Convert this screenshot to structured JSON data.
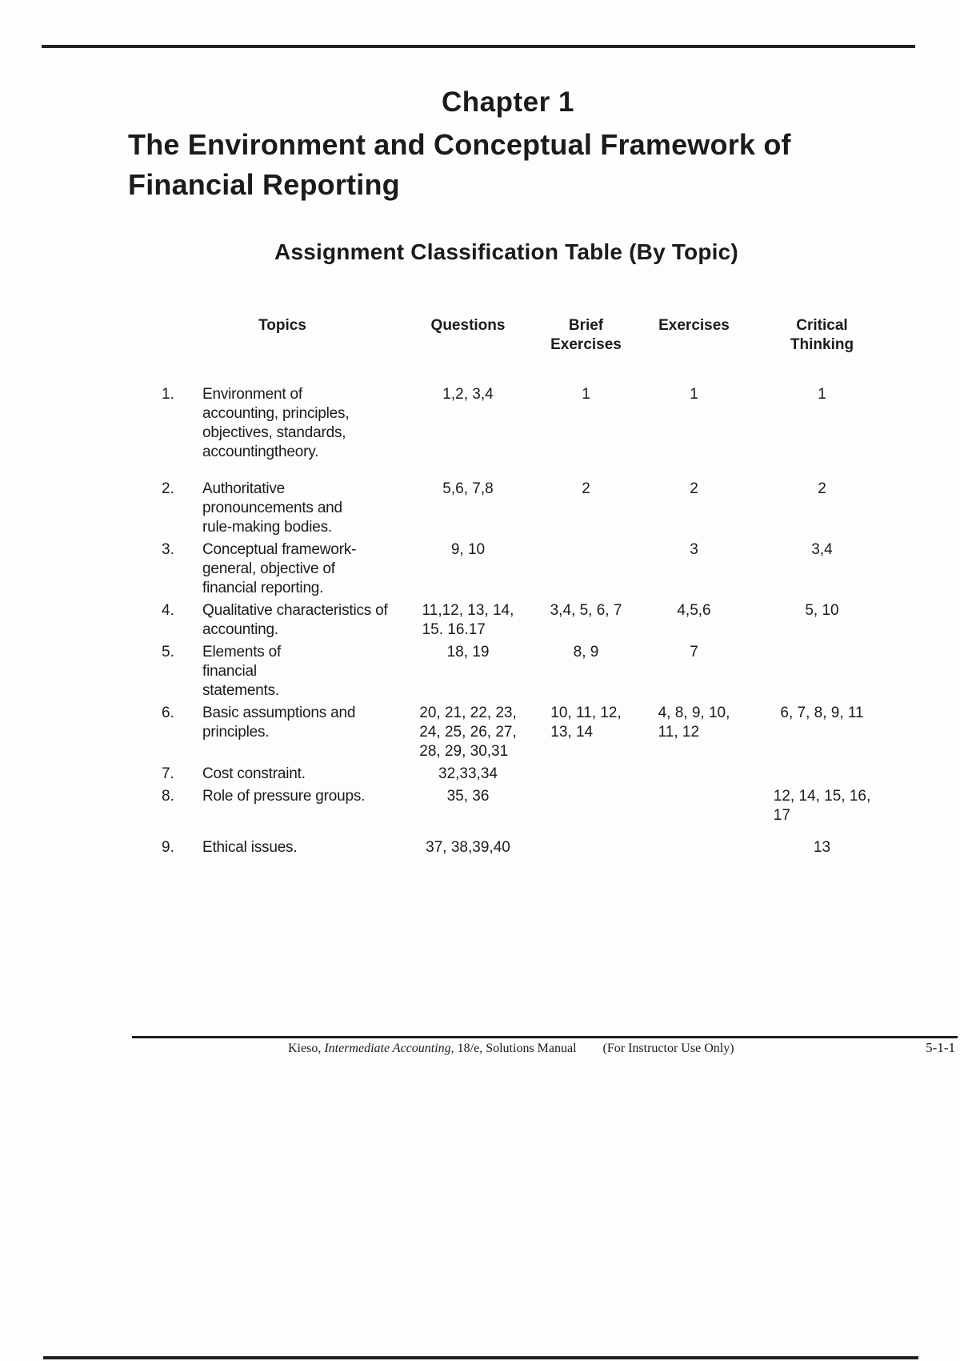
{
  "page": {
    "chapter_title": "Chapter 1",
    "document_title": "The Environment and Conceptual Framework of\nFinancial Reporting",
    "subtitle": "Assignment Classification Table (By Topic)"
  },
  "table": {
    "headers": {
      "topics": "Topics",
      "questions": "Questions",
      "brief_exercises": "Brief\nExercises",
      "exercises": "Exercises",
      "critical_thinking": "Critical\nThinking"
    },
    "rows": [
      {
        "num": "1.",
        "topic": "Environment of\naccounting, principles,\nobjectives,  standards,\naccountingtheory.",
        "questions": "1,2, 3,4",
        "brief_exercises": "1",
        "exercises": "1",
        "critical_thinking": "1"
      },
      {
        "num": "2.",
        "topic": "Authoritative\npronouncements and\nrule-making  bodies.",
        "questions": "5,6, 7,8",
        "brief_exercises": "2",
        "exercises": "2",
        "critical_thinking": "2"
      },
      {
        "num": "3.",
        "topic": "Conceptual  framework-\ngeneral,  objective  of\nfinancial reporting.",
        "questions": "9, 10",
        "brief_exercises": "",
        "exercises": "3",
        "critical_thinking": "3,4"
      },
      {
        "num": "4.",
        "topic": "Qualitative characteristics of\naccounting.",
        "questions": "11,12, 13, 14,\n15. 16.17",
        "brief_exercises": "3,4, 5, 6, 7",
        "exercises": "4,5,6",
        "critical_thinking": "5, 10"
      },
      {
        "num": "5.",
        "topic": "Elements  of\nfinancial\nstatements.",
        "questions": "18, 19",
        "brief_exercises": "8, 9",
        "exercises": "7",
        "critical_thinking": ""
      },
      {
        "num": "6.",
        "topic": "Basic assumptions  and\nprinciples.",
        "questions": "20, 21, 22, 23,\n24, 25, 26, 27,\n28, 29, 30,31",
        "brief_exercises": "10, 11, 12,\n13, 14",
        "exercises": "4, 8, 9, 10,\n11, 12",
        "critical_thinking": "6, 7, 8, 9, 11"
      },
      {
        "num": "7.",
        "topic": "Cost  constraint.",
        "questions": "32,33,34",
        "brief_exercises": "",
        "exercises": "",
        "critical_thinking": ""
      },
      {
        "num": "8.",
        "topic": "Role of pressure  groups.",
        "questions": "35, 36",
        "brief_exercises": "",
        "exercises": "",
        "critical_thinking": "12, 14, 15, 16,\n17"
      },
      {
        "num": "9.",
        "topic": "Ethical issues.",
        "questions": "37, 38,39,40",
        "brief_exercises": "",
        "exercises": "",
        "critical_thinking": "13"
      }
    ]
  },
  "footer": {
    "citation_author": "Kieso, ",
    "citation_book": "Intermediate Accounting,",
    "citation_edition": " 18/e, Solutions Manual",
    "instructor_note": "(For Instructor Use Only)",
    "page_number": "5-1-1"
  }
}
